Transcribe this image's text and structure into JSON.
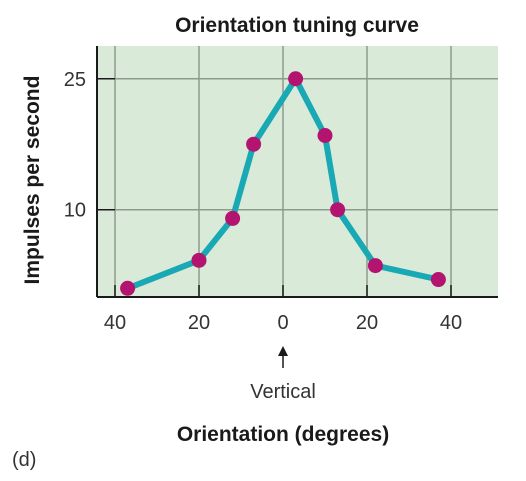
{
  "chart_data": {
    "type": "line",
    "title": "Orientation tuning curve",
    "xlabel": "Orientation (degrees)",
    "ylabel": "Impulses per second",
    "x_tick_labels": [
      "40",
      "20",
      "0",
      "20",
      "40"
    ],
    "x_ticks": [
      -40,
      -20,
      0,
      20,
      40
    ],
    "y_ticks": [
      10,
      25
    ],
    "xlim": [
      -48,
      48
    ],
    "ylim": [
      0,
      26.5
    ],
    "x": [
      -37,
      -20,
      -12,
      -7,
      3,
      10,
      13,
      22,
      37
    ],
    "y": [
      1,
      4.2,
      9,
      17.5,
      25,
      18.5,
      10,
      3.6,
      2
    ],
    "grid": true,
    "annotation": "Vertical",
    "panel_label": "(d)",
    "colors": {
      "plot_background": "#d9ead8",
      "line": "#19a9b4",
      "marker": "#b3146f",
      "grid": "#8f9a8e",
      "axis": "#1a1a1a"
    }
  }
}
